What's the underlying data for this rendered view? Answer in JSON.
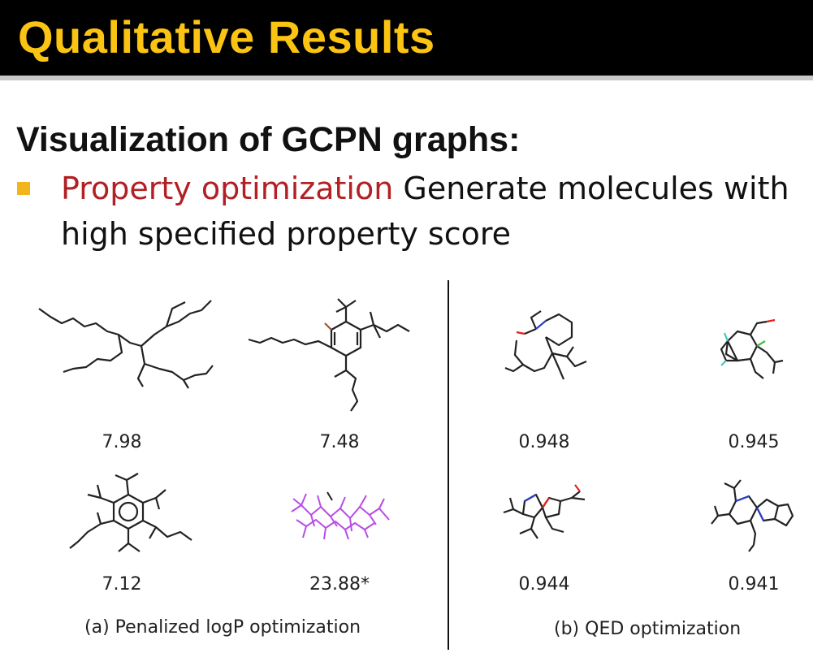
{
  "slide": {
    "title": "Qualitative Results",
    "heading": "Visualization of GCPN graphs:",
    "bullet": {
      "highlight": "Property optimization",
      "text": " Generate molecules with high specified property score"
    }
  },
  "figure": {
    "panel_a": {
      "caption": "(a) Penalized logP optimization",
      "scores": [
        "7.98",
        "7.48",
        "7.12",
        "23.88*"
      ]
    },
    "panel_b": {
      "caption": "(b) QED optimization",
      "scores": [
        "0.948",
        "0.945",
        "0.944",
        "0.941"
      ]
    }
  },
  "colors": {
    "title_bar": "#000000",
    "title_text": "#fbc312",
    "bullet_marker": "#f2b51d",
    "highlight": "#b21f24",
    "invalid_molecule": "#b84ce6",
    "oxygen": "#e2211c",
    "nitrogen": "#2c3ec9",
    "fluorine": "#42c6c6",
    "chlorine": "#3fbf3f"
  }
}
